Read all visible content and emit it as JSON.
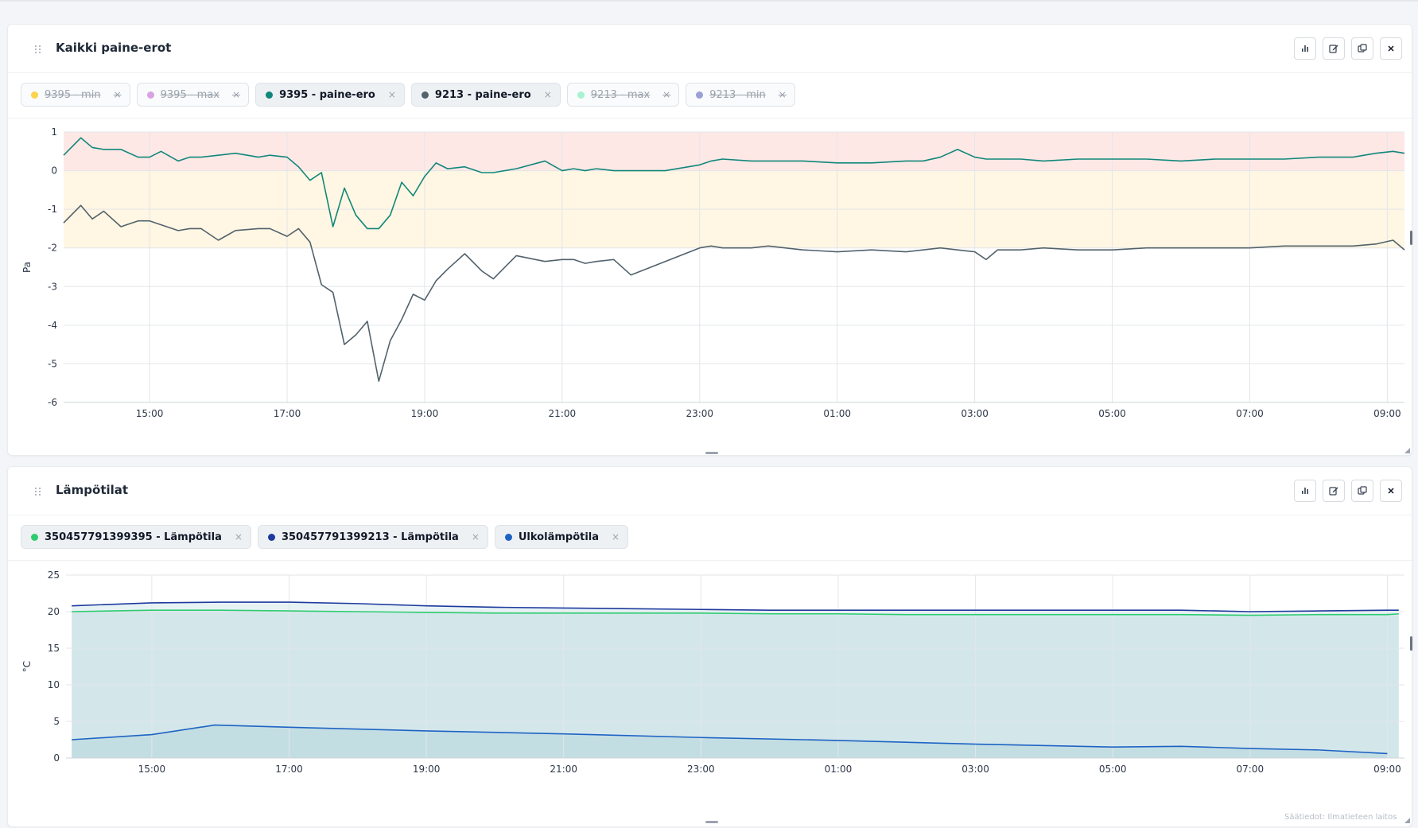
{
  "panels": [
    {
      "title": "Kaikki paine-erot",
      "legend": [
        {
          "label": "9395 - min",
          "color": "#fcd34d",
          "active": false
        },
        {
          "label": "9395 - max",
          "color": "#d8a2e3",
          "active": false
        },
        {
          "label": "9395 - paine-ero",
          "color": "#11877a",
          "active": true
        },
        {
          "label": "9213 - paine-ero",
          "color": "#52626c",
          "active": true
        },
        {
          "label": "9213 - max",
          "color": "#a7f3d0",
          "active": false
        },
        {
          "label": "9213 - min",
          "color": "#9aa0d8",
          "active": false
        }
      ]
    },
    {
      "title": "Lämpötilat",
      "legend": [
        {
          "label": "350457791399395 - Lämpötila",
          "color": "#2ecc71",
          "active": true
        },
        {
          "label": "350457791399213 - Lämpötila",
          "color": "#1e3a9e",
          "active": true
        },
        {
          "label": "Ulkolämpötila",
          "color": "#1e63c4",
          "active": true
        }
      ]
    }
  ],
  "icons": [
    "drag-handle-icon",
    "bar-chart-icon",
    "edit-icon",
    "copy-icon",
    "close-icon",
    "chip-close-icon",
    "resize-handle-icon",
    "resize-corner-icon"
  ],
  "source_note": "Säätiedot: Ilmatieteen laitos",
  "chart_data": [
    {
      "type": "line",
      "ylabel": "Pa",
      "ylim": [
        -6,
        1
      ],
      "yticks": [
        1,
        0,
        -1,
        -2,
        -3,
        -4,
        -5,
        -6
      ],
      "xlim": [
        "13:45",
        "09:15"
      ],
      "xticks": [
        "15:00",
        "17:00",
        "19:00",
        "21:00",
        "23:00",
        "01:00",
        "03:00",
        "05:00",
        "07:00",
        "09:00"
      ],
      "grid": true,
      "bands": [
        {
          "from": 0,
          "to": 1,
          "color": "#fde8e6"
        },
        {
          "from": -2,
          "to": 0,
          "color": "#fff6e3"
        }
      ],
      "series": [
        {
          "name": "9395 - paine-ero",
          "color": "#11877a",
          "x": [
            "13:45",
            "14:00",
            "14:10",
            "14:20",
            "14:35",
            "14:50",
            "15:00",
            "15:10",
            "15:25",
            "15:35",
            "15:45",
            "16:00",
            "16:15",
            "16:35",
            "16:45",
            "17:00",
            "17:10",
            "17:20",
            "17:30",
            "17:40",
            "17:50",
            "18:00",
            "18:10",
            "18:20",
            "18:30",
            "18:40",
            "18:50",
            "19:00",
            "19:10",
            "19:20",
            "19:35",
            "19:50",
            "20:00",
            "20:20",
            "20:45",
            "21:00",
            "21:10",
            "21:20",
            "21:30",
            "21:45",
            "22:00",
            "22:30",
            "23:00",
            "23:10",
            "23:20",
            "23:45",
            "24:00",
            "24:30",
            "25:00",
            "25:30",
            "26:00",
            "26:15",
            "26:30",
            "26:45",
            "27:00",
            "27:10",
            "27:20",
            "27:40",
            "28:00",
            "28:30",
            "29:00",
            "29:30",
            "30:00",
            "30:30",
            "31:00",
            "31:30",
            "32:00",
            "32:30",
            "32:50",
            "33:05",
            "33:15"
          ],
          "values": [
            0.4,
            0.85,
            0.6,
            0.55,
            0.55,
            0.35,
            0.35,
            0.5,
            0.25,
            0.35,
            0.35,
            0.4,
            0.45,
            0.35,
            0.4,
            0.35,
            0.1,
            -0.25,
            -0.05,
            -1.45,
            -0.45,
            -1.15,
            -1.5,
            -1.5,
            -1.15,
            -0.3,
            -0.65,
            -0.15,
            0.2,
            0.05,
            0.1,
            -0.05,
            -0.05,
            0.05,
            0.25,
            0.0,
            0.05,
            0.0,
            0.05,
            0.0,
            0.0,
            0.0,
            0.15,
            0.25,
            0.3,
            0.25,
            0.25,
            0.25,
            0.2,
            0.2,
            0.25,
            0.25,
            0.35,
            0.55,
            0.35,
            0.3,
            0.3,
            0.3,
            0.25,
            0.3,
            0.3,
            0.3,
            0.25,
            0.3,
            0.3,
            0.3,
            0.35,
            0.35,
            0.45,
            0.5,
            0.45
          ]
        },
        {
          "name": "9213 - paine-ero",
          "color": "#52626c",
          "x": [
            "13:45",
            "14:00",
            "14:10",
            "14:20",
            "14:35",
            "14:50",
            "15:00",
            "15:10",
            "15:25",
            "15:35",
            "15:45",
            "16:00",
            "16:15",
            "16:35",
            "16:45",
            "17:00",
            "17:10",
            "17:20",
            "17:30",
            "17:40",
            "17:50",
            "18:00",
            "18:10",
            "18:20",
            "18:30",
            "18:40",
            "18:50",
            "19:00",
            "19:10",
            "19:20",
            "19:35",
            "19:50",
            "20:00",
            "20:20",
            "20:45",
            "21:00",
            "21:10",
            "21:20",
            "21:30",
            "21:45",
            "22:00",
            "22:30",
            "23:00",
            "23:10",
            "23:20",
            "23:45",
            "24:00",
            "24:30",
            "25:00",
            "25:30",
            "26:00",
            "26:15",
            "26:30",
            "26:45",
            "27:00",
            "27:10",
            "27:20",
            "27:40",
            "28:00",
            "28:30",
            "29:00",
            "29:30",
            "30:00",
            "30:30",
            "31:00",
            "31:30",
            "32:00",
            "32:30",
            "32:50",
            "33:05",
            "33:15"
          ],
          "values": [
            -1.35,
            -0.9,
            -1.25,
            -1.05,
            -1.45,
            -1.3,
            -1.3,
            -1.4,
            -1.55,
            -1.5,
            -1.5,
            -1.8,
            -1.55,
            -1.5,
            -1.5,
            -1.7,
            -1.5,
            -1.85,
            -2.95,
            -3.15,
            -4.5,
            -4.25,
            -3.9,
            -5.45,
            -4.4,
            -3.85,
            -3.2,
            -3.35,
            -2.85,
            -2.55,
            -2.15,
            -2.6,
            -2.8,
            -2.2,
            -2.35,
            -2.3,
            -2.3,
            -2.4,
            -2.35,
            -2.3,
            -2.7,
            -2.35,
            -2.0,
            -1.95,
            -2.0,
            -2.0,
            -1.95,
            -2.05,
            -2.1,
            -2.05,
            -2.1,
            -2.05,
            -2.0,
            -2.05,
            -2.1,
            -2.3,
            -2.05,
            -2.05,
            -2.0,
            -2.05,
            -2.05,
            -2.0,
            -2.0,
            -2.0,
            -2.0,
            -1.95,
            -1.95,
            -1.95,
            -1.9,
            -1.8,
            -2.05
          ]
        }
      ]
    },
    {
      "type": "area",
      "ylabel": "°C",
      "ylim": [
        0,
        25
      ],
      "yticks": [
        25,
        20,
        15,
        10,
        5,
        0
      ],
      "xlim": [
        "13:45",
        "09:15"
      ],
      "xticks": [
        "15:00",
        "17:00",
        "19:00",
        "21:00",
        "23:00",
        "01:00",
        "03:00",
        "05:00",
        "07:00",
        "09:00"
      ],
      "grid": true,
      "series": [
        {
          "name": "350457791399395 - Lämpötila",
          "color": "#2ecc71",
          "x": [
            "13:50",
            "15:00",
            "16:00",
            "17:00",
            "18:00",
            "19:00",
            "20:00",
            "21:00",
            "22:00",
            "23:00",
            "24:00",
            "25:00",
            "26:00",
            "27:00",
            "28:00",
            "29:00",
            "30:00",
            "31:00",
            "32:00",
            "33:00",
            "33:10"
          ],
          "values": [
            20.0,
            20.2,
            20.2,
            20.1,
            20.0,
            19.9,
            19.8,
            19.8,
            19.8,
            19.8,
            19.7,
            19.7,
            19.6,
            19.6,
            19.6,
            19.6,
            19.6,
            19.5,
            19.6,
            19.6,
            19.7
          ]
        },
        {
          "name": "350457791399213 - Lämpötila",
          "color": "#1e3a9e",
          "x": [
            "13:50",
            "15:00",
            "16:00",
            "17:00",
            "18:00",
            "19:00",
            "20:00",
            "21:00",
            "22:00",
            "23:00",
            "24:00",
            "25:00",
            "26:00",
            "27:00",
            "28:00",
            "29:00",
            "30:00",
            "31:00",
            "32:00",
            "33:00",
            "33:10"
          ],
          "values": [
            20.8,
            21.2,
            21.3,
            21.3,
            21.1,
            20.8,
            20.6,
            20.5,
            20.4,
            20.3,
            20.2,
            20.2,
            20.2,
            20.2,
            20.2,
            20.2,
            20.2,
            20.0,
            20.1,
            20.2,
            20.2
          ]
        },
        {
          "name": "Ulkolämpötila",
          "color": "#1e63c4",
          "x": [
            "13:50",
            "15:00",
            "15:55",
            "17:00",
            "19:00",
            "21:00",
            "23:00",
            "25:00",
            "27:00",
            "29:00",
            "30:00",
            "31:00",
            "32:00",
            "33:00"
          ],
          "values": [
            2.5,
            3.2,
            4.5,
            4.2,
            3.7,
            3.3,
            2.8,
            2.4,
            1.9,
            1.5,
            1.6,
            1.3,
            1.1,
            0.6
          ]
        }
      ]
    }
  ]
}
